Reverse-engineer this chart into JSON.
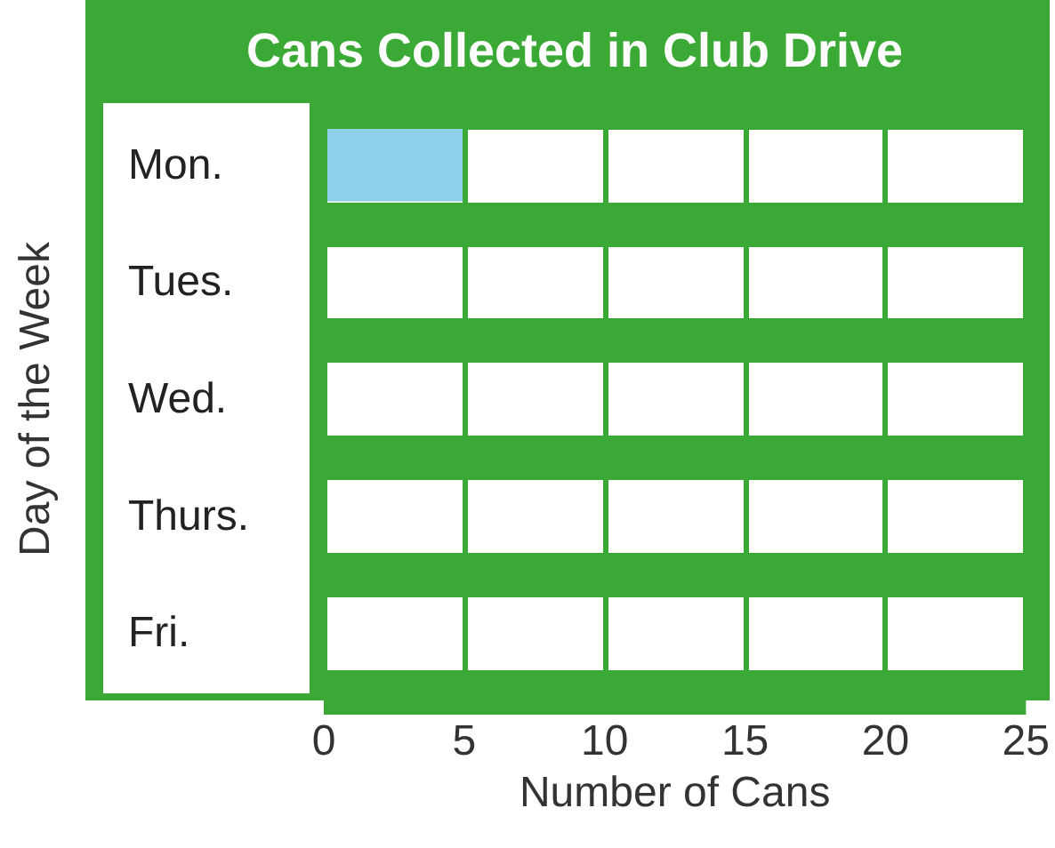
{
  "chart_data": {
    "type": "bar",
    "orientation": "horizontal",
    "title": "Cans Collected in Club Drive",
    "xlabel": "Number of Cans",
    "ylabel": "Day of the Week",
    "categories": [
      "Mon.",
      "Tues.",
      "Wed.",
      "Thurs.",
      "Fri."
    ],
    "values": [
      5,
      null,
      null,
      null,
      null
    ],
    "color": "#8fd0ea",
    "xlim": [
      0,
      25
    ],
    "xticks": [
      0,
      5,
      10,
      15,
      20,
      25
    ],
    "grid": true
  }
}
